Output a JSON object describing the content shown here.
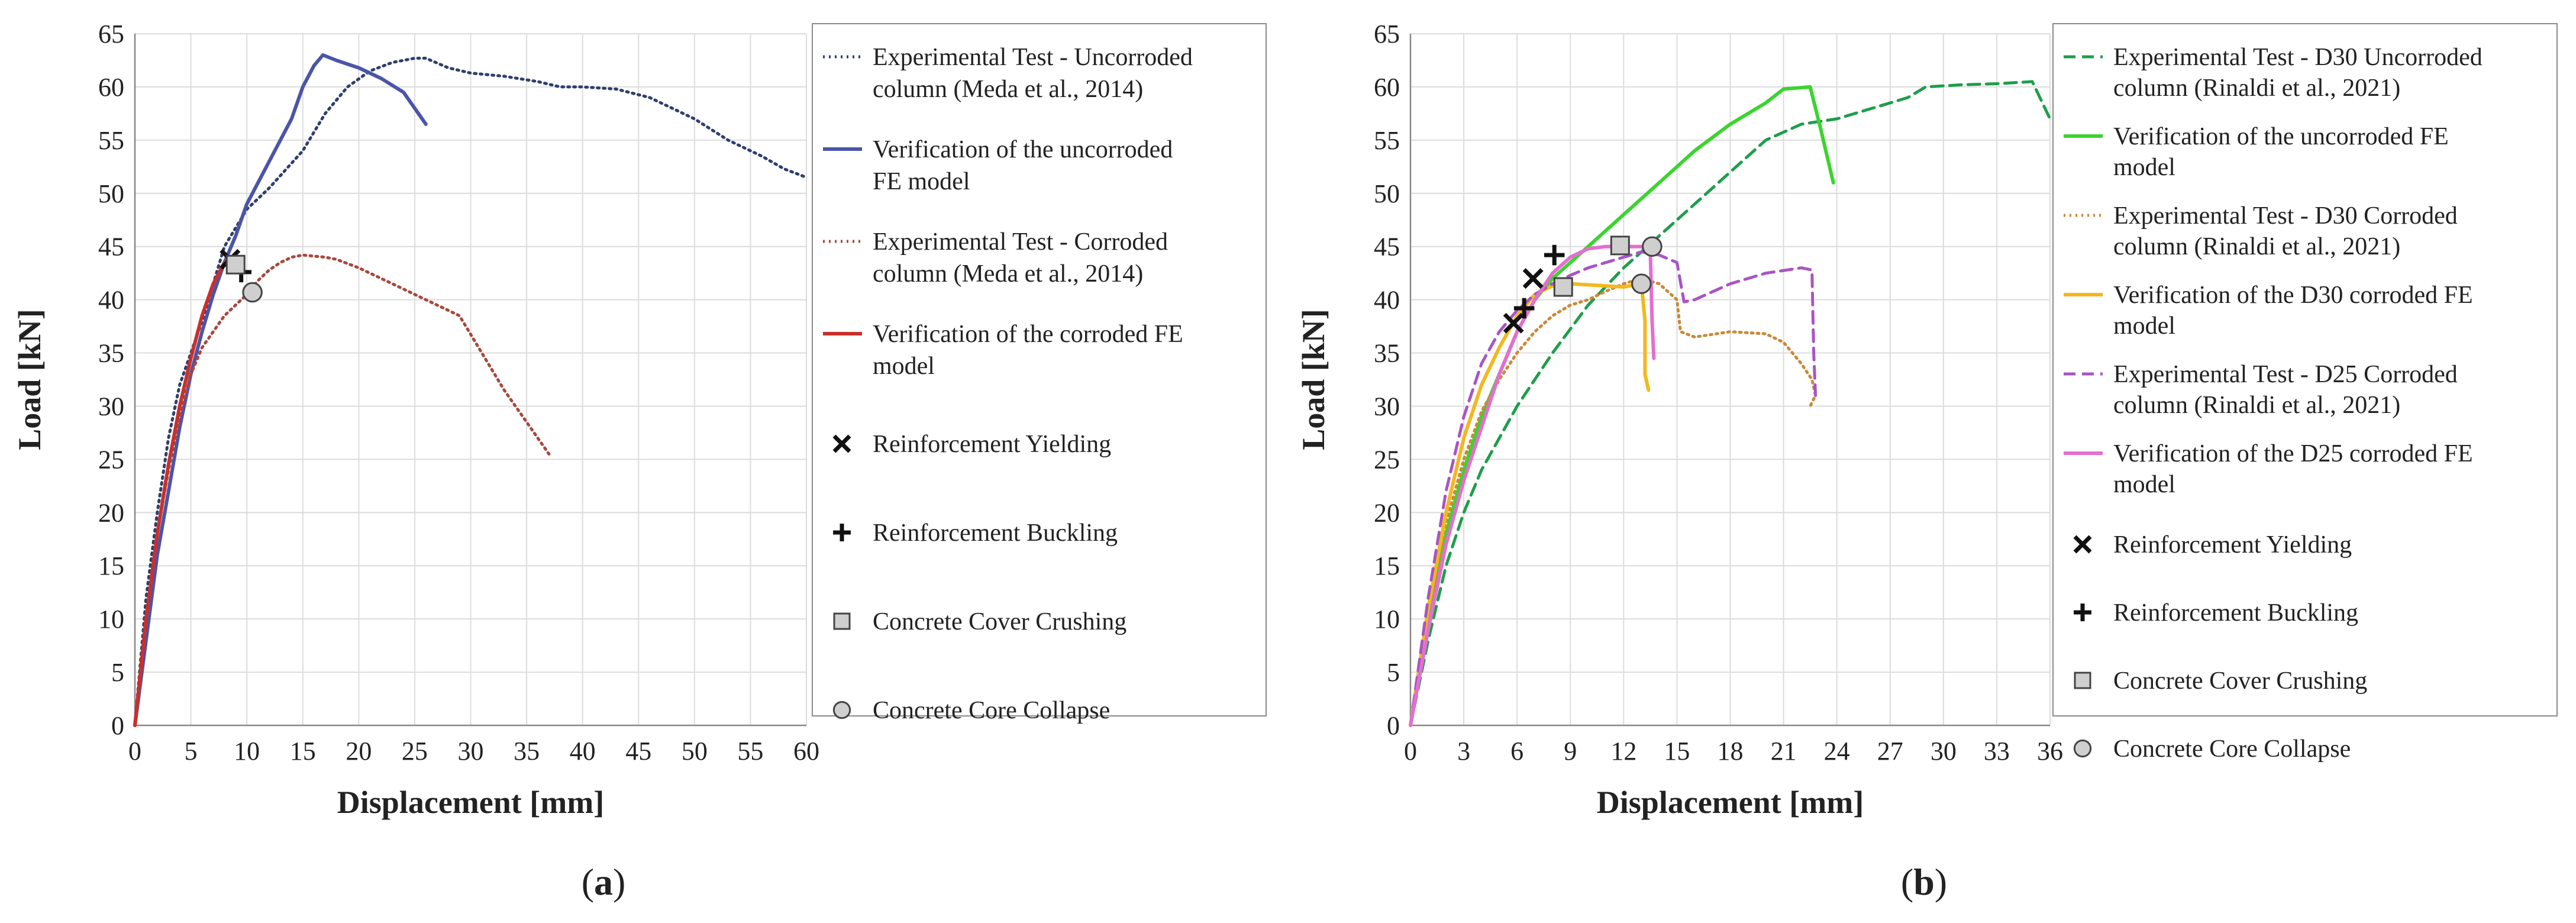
{
  "chart_data": [
    {
      "type": "line",
      "panel_label": "a",
      "xlabel": "Displacement [mm]",
      "ylabel": "Load [kN]",
      "xlim": [
        0,
        60
      ],
      "ylim": [
        0,
        65
      ],
      "xticks": [
        0,
        5,
        10,
        15,
        20,
        25,
        30,
        35,
        40,
        45,
        50,
        55,
        60
      ],
      "yticks": [
        0,
        5,
        10,
        15,
        20,
        25,
        30,
        35,
        40,
        45,
        50,
        55,
        60,
        65
      ],
      "grid": true,
      "legend_position": "right",
      "series": [
        {
          "name": "Experimental Test - Uncorroded column (Meda et al., 2014)",
          "legend_lines": [
            "Experimental Test - Uncorroded",
            "column (Meda et al., 2014)"
          ],
          "color": "#2f3f6b",
          "dash": "dotted",
          "x": [
            0,
            1,
            2,
            3,
            4,
            6,
            8,
            10,
            12,
            15,
            17,
            19,
            21,
            23,
            25,
            26,
            28,
            30,
            33,
            36,
            38,
            40,
            43,
            46,
            50,
            53,
            56,
            58,
            60
          ],
          "y": [
            0,
            12,
            20,
            27,
            32,
            38,
            45,
            48.5,
            50.5,
            54,
            57.5,
            60,
            61.5,
            62.3,
            62.7,
            62.7,
            61.8,
            61.3,
            61,
            60.5,
            60,
            60,
            59.8,
            59,
            57,
            55,
            53.5,
            52.3,
            51.5
          ]
        },
        {
          "name": "Verification of the uncorroded FE model",
          "legend_lines": [
            "Verification of the uncorroded",
            "FE model"
          ],
          "color": "#4a55a8",
          "dash": "solid",
          "x": [
            0,
            1,
            2,
            3,
            4,
            5,
            6,
            7,
            8,
            9,
            10,
            12,
            14,
            15,
            16,
            16.8,
            18,
            20,
            22,
            24,
            25,
            26
          ],
          "y": [
            0,
            8,
            16,
            22,
            28,
            33,
            37,
            40.5,
            43.5,
            46,
            49,
            53,
            57,
            60,
            62,
            63,
            62.5,
            61.8,
            60.8,
            59.5,
            58,
            56.5
          ]
        },
        {
          "name": "Experimental Test - Corroded column (Meda et al., 2014)",
          "legend_lines": [
            "Experimental Test - Corroded",
            "column (Meda et al., 2014)"
          ],
          "color": "#a8483e",
          "dash": "dotted",
          "x": [
            0,
            1,
            2,
            3,
            4,
            5,
            6,
            7,
            8,
            9,
            10,
            11,
            12,
            13,
            14,
            15,
            16,
            17,
            18,
            20,
            22,
            25,
            27,
            29,
            31,
            33,
            35,
            37
          ],
          "y": [
            0,
            10,
            18,
            24,
            29,
            33,
            35.5,
            37,
            38.5,
            39.5,
            40.5,
            41.8,
            42.8,
            43.5,
            44,
            44.2,
            44.1,
            44,
            43.8,
            43,
            42,
            40.5,
            39.5,
            38.5,
            35,
            31.5,
            28.5,
            25.5
          ]
        },
        {
          "name": "Verification of the corroded FE model",
          "legend_lines": [
            "Verification of the corroded FE",
            "model"
          ],
          "color": "#c9302c",
          "dash": "solid",
          "x": [
            0,
            1,
            2,
            3,
            4,
            5,
            6,
            7,
            8
          ],
          "y": [
            0,
            10,
            18,
            24.5,
            30,
            34.5,
            38.5,
            41.5,
            43.5
          ]
        }
      ],
      "markers": [
        {
          "label": "Reinforcement Yielding",
          "symbol": "x",
          "points": [
            [
              8.5,
              43.8
            ]
          ]
        },
        {
          "label": "Reinforcement Buckling",
          "symbol": "plus",
          "points": [
            [
              9.5,
              42.6
            ]
          ]
        },
        {
          "label": "Concrete Cover Crushing",
          "symbol": "square",
          "points": [
            [
              9.0,
              43.3
            ]
          ]
        },
        {
          "label": "Concrete Core Collapse",
          "symbol": "circle",
          "points": [
            [
              10.5,
              40.7
            ]
          ]
        }
      ]
    },
    {
      "type": "line",
      "panel_label": "b",
      "xlabel": "Displacement [mm]",
      "ylabel": "Load [kN]",
      "xlim": [
        0,
        36
      ],
      "ylim": [
        0,
        65
      ],
      "xticks": [
        0,
        3,
        6,
        9,
        12,
        15,
        18,
        21,
        24,
        27,
        30,
        33,
        36
      ],
      "yticks": [
        0,
        5,
        10,
        15,
        20,
        25,
        30,
        35,
        40,
        45,
        50,
        55,
        60,
        65
      ],
      "grid": true,
      "legend_position": "right",
      "series": [
        {
          "name": "Experimental Test - D30 Uncorroded column (Rinaldi et al., 2021)",
          "legend_lines": [
            "Experimental Test - D30 Uncorroded",
            "column (Rinaldi et al., 2021)"
          ],
          "color": "#1e9e4a",
          "dash": "dashed",
          "x": [
            0,
            1,
            2,
            3,
            4,
            6,
            8,
            10,
            12,
            14,
            16,
            18,
            20,
            22,
            24,
            26,
            28,
            29,
            31,
            33,
            35,
            36
          ],
          "y": [
            0,
            8,
            15,
            20,
            24,
            30,
            35,
            39.5,
            43,
            46,
            49,
            52,
            55,
            56.5,
            57,
            58,
            59,
            60,
            60.2,
            60.3,
            60.5,
            57
          ]
        },
        {
          "name": "Verification of the uncorroded FE model",
          "legend_lines": [
            "Verification of the uncorroded FE",
            "model"
          ],
          "color": "#3bd42f",
          "dash": "solid",
          "x": [
            0,
            1,
            2,
            3,
            4,
            5,
            6,
            7,
            8,
            9,
            10,
            12,
            14,
            16,
            18,
            20,
            21,
            22.5,
            23.1,
            23.8
          ],
          "y": [
            0,
            10,
            18,
            24,
            29,
            33,
            37,
            40,
            42,
            43.5,
            45,
            48,
            51,
            54,
            56.5,
            58.5,
            59.8,
            60,
            56,
            51
          ]
        },
        {
          "name": "Experimental Test - D30 Corroded column (Rinaldi et al., 2021)",
          "legend_lines": [
            "Experimental Test - D30 Corroded",
            "column (Rinaldi et al., 2021)"
          ],
          "color": "#c98a3a",
          "dash": "dotted",
          "x": [
            0,
            1,
            2,
            3,
            4,
            5,
            6,
            7,
            8,
            9,
            10,
            11,
            12,
            13,
            14,
            15,
            15.2,
            16,
            18,
            20,
            21,
            22,
            22.6,
            22.8,
            22.5
          ],
          "y": [
            0,
            10,
            19,
            25,
            29.5,
            32.5,
            35,
            37,
            38.5,
            39.5,
            40,
            40.8,
            41.5,
            42,
            41.5,
            40,
            37,
            36.5,
            37,
            36.8,
            36,
            34,
            32.5,
            31,
            30
          ]
        },
        {
          "name": "Verification of the D30 corroded FE model",
          "legend_lines": [
            "Verification of the D30 corroded FE",
            "model"
          ],
          "color": "#f2b81d",
          "dash": "solid",
          "x": [
            0,
            1,
            2,
            3,
            4,
            5,
            6,
            7,
            8,
            9,
            10,
            11,
            12,
            13,
            13.2,
            13.2,
            13.4
          ],
          "y": [
            0,
            11,
            20,
            27,
            32,
            35.5,
            38.5,
            40.5,
            41.3,
            41.5,
            41.4,
            41.3,
            41.2,
            41.5,
            38,
            33,
            31.5
          ]
        },
        {
          "name": "Experimental Test - D25 Corroded column (Rinaldi et al., 2021)",
          "legend_lines": [
            "Experimental Test - D25 Corroded",
            "column (Rinaldi et al., 2021)"
          ],
          "color": "#a855c4",
          "dash": "dashed",
          "x": [
            0,
            1,
            2,
            3,
            4,
            5,
            6,
            7,
            8,
            9,
            10,
            11,
            12,
            13,
            14,
            15,
            15.4,
            16,
            18,
            20,
            22,
            22.6,
            22.7,
            22.8
          ],
          "y": [
            0,
            12,
            22,
            29,
            34,
            37,
            39,
            40.5,
            41.5,
            42.3,
            43,
            43.5,
            44,
            44.5,
            44.2,
            43.5,
            39.8,
            40,
            41.5,
            42.5,
            43,
            42.8,
            35,
            31
          ]
        },
        {
          "name": "Verification of the D25 corroded FE model",
          "legend_lines": [
            "Verification of the D25 corroded FE",
            "model"
          ],
          "color": "#e36fd0",
          "dash": "solid",
          "x": [
            0,
            1,
            2,
            3,
            4,
            5,
            6,
            7,
            8,
            9,
            10,
            11,
            12,
            13,
            13.5,
            13.6,
            13.7
          ],
          "y": [
            0,
            9,
            17,
            23,
            28,
            33,
            37,
            40,
            42.5,
            44,
            44.8,
            45,
            45,
            45,
            44.5,
            38,
            34.5
          ]
        }
      ],
      "markers": [
        {
          "label": "Reinforcement Yielding",
          "symbol": "x",
          "points": [
            [
              5.8,
              37.8
            ],
            [
              6.9,
              42.0
            ]
          ]
        },
        {
          "label": "Reinforcement Buckling",
          "symbol": "plus",
          "points": [
            [
              6.4,
              39.2
            ],
            [
              8.1,
              44.2
            ]
          ]
        },
        {
          "label": "Concrete Cover Crushing",
          "symbol": "square",
          "points": [
            [
              8.6,
              41.2
            ],
            [
              11.8,
              45.1
            ]
          ]
        },
        {
          "label": "Concrete Core Collapse",
          "symbol": "circle",
          "points": [
            [
              13.0,
              41.5
            ],
            [
              13.6,
              45.0
            ]
          ]
        }
      ]
    }
  ]
}
